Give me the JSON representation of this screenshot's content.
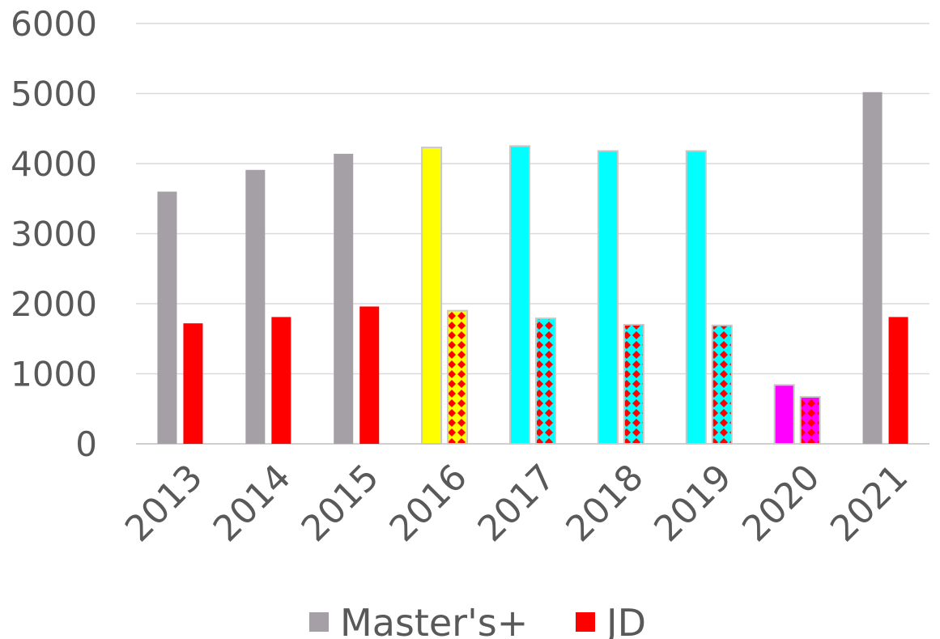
{
  "chart_data": {
    "type": "bar",
    "title": "",
    "xlabel": "",
    "ylabel": "",
    "categories": [
      "2013",
      "2014",
      "2015",
      "2016",
      "2017",
      "2018",
      "2019",
      "2020",
      "2021"
    ],
    "ylim": [
      0,
      6000
    ],
    "yticks": [
      "0",
      "1000",
      "2000",
      "3000",
      "4000",
      "5000",
      "6000"
    ],
    "grid": true,
    "legend_position": "bottom",
    "series": [
      {
        "name": "Master's+",
        "color": "#A59FA6",
        "values": [
          3600,
          3910,
          4140,
          4230,
          4250,
          4180,
          4180,
          840,
          5020
        ]
      },
      {
        "name": "JD",
        "color": "#FF0000",
        "values": [
          1720,
          1810,
          1960,
          1900,
          1790,
          1700,
          1690,
          670,
          1810
        ]
      }
    ],
    "highlight_colors": {
      "2016": "#FFFF00",
      "2017": "#00FFFF",
      "2018": "#00FFFF",
      "2019": "#00FFFF",
      "2020": "#FF00FF"
    },
    "jd_patterned_categories": [
      "2016",
      "2017",
      "2018",
      "2019",
      "2020"
    ]
  }
}
